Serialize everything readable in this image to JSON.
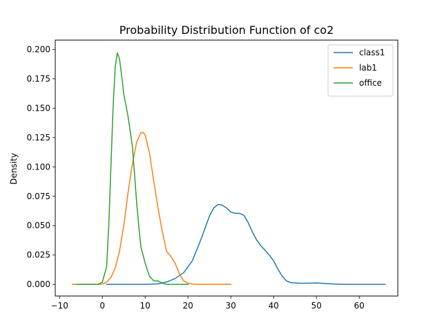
{
  "chart_data": {
    "type": "line",
    "title": "Probability Distribution Function of co2",
    "xlabel": "",
    "ylabel": "Density",
    "xlim": [
      -11,
      69
    ],
    "ylim": [
      -0.0099,
      0.2079
    ],
    "xticks": [
      -10,
      0,
      10,
      20,
      30,
      40,
      50,
      60
    ],
    "xtick_labels": [
      "−10",
      "0",
      "10",
      "20",
      "30",
      "40",
      "50",
      "60"
    ],
    "yticks": [
      0.0,
      0.025,
      0.05,
      0.075,
      0.1,
      0.125,
      0.15,
      0.175,
      0.2
    ],
    "ytick_labels": [
      "0.000",
      "0.025",
      "0.050",
      "0.075",
      "0.100",
      "0.125",
      "0.150",
      "0.175",
      "0.200"
    ],
    "grid": false,
    "legend_position": "top-right",
    "series": [
      {
        "name": "class1",
        "color": "#1f77b4",
        "points": [
          [
            1,
            0.0
          ],
          [
            10,
            0.0
          ],
          [
            13,
            0.0005
          ],
          [
            15,
            0.002
          ],
          [
            17,
            0.005
          ],
          [
            19,
            0.01
          ],
          [
            21,
            0.02
          ],
          [
            23,
            0.038
          ],
          [
            25,
            0.058
          ],
          [
            26,
            0.065
          ],
          [
            27,
            0.068
          ],
          [
            28,
            0.0675
          ],
          [
            29,
            0.065
          ],
          [
            30,
            0.0615
          ],
          [
            31,
            0.0605
          ],
          [
            32,
            0.0605
          ],
          [
            33,
            0.059
          ],
          [
            34,
            0.053
          ],
          [
            35,
            0.045
          ],
          [
            36,
            0.038
          ],
          [
            37,
            0.033
          ],
          [
            38,
            0.029
          ],
          [
            39,
            0.025
          ],
          [
            40,
            0.02
          ],
          [
            41,
            0.013
          ],
          [
            42,
            0.007
          ],
          [
            43,
            0.003
          ],
          [
            44,
            0.0015
          ],
          [
            46,
            0.001
          ],
          [
            48,
            0.001
          ],
          [
            50,
            0.0012
          ],
          [
            52,
            0.0008
          ],
          [
            54,
            0.0003
          ],
          [
            57,
            0.0
          ],
          [
            66,
            0.0
          ]
        ]
      },
      {
        "name": "lab1",
        "color": "#ff7f0e",
        "points": [
          [
            -7,
            0.0
          ],
          [
            -1,
            0.0
          ],
          [
            0,
            0.0003
          ],
          [
            1,
            0.002
          ],
          [
            2,
            0.006
          ],
          [
            3,
            0.014
          ],
          [
            4,
            0.028
          ],
          [
            5,
            0.05
          ],
          [
            6,
            0.078
          ],
          [
            7,
            0.102
          ],
          [
            8,
            0.121
          ],
          [
            9,
            0.129
          ],
          [
            9.5,
            0.1295
          ],
          [
            10,
            0.127
          ],
          [
            11,
            0.112
          ],
          [
            12,
            0.088
          ],
          [
            13,
            0.065
          ],
          [
            14,
            0.045
          ],
          [
            15,
            0.028
          ],
          [
            16,
            0.024
          ],
          [
            17,
            0.018
          ],
          [
            18,
            0.009
          ],
          [
            19,
            0.003
          ],
          [
            20,
            0.001
          ],
          [
            21,
            0.0003
          ],
          [
            22,
            0.0
          ],
          [
            30,
            0.0
          ]
        ]
      },
      {
        "name": "office",
        "color": "#2ca02c",
        "points": [
          [
            -6,
            0.0
          ],
          [
            -1,
            0.0
          ],
          [
            0,
            0.002
          ],
          [
            1,
            0.015
          ],
          [
            1.5,
            0.05
          ],
          [
            2,
            0.1
          ],
          [
            2.5,
            0.15
          ],
          [
            3,
            0.185
          ],
          [
            3.5,
            0.197
          ],
          [
            4,
            0.192
          ],
          [
            4.5,
            0.178
          ],
          [
            5,
            0.162
          ],
          [
            6,
            0.143
          ],
          [
            7,
            0.118
          ],
          [
            7.5,
            0.095
          ],
          [
            8,
            0.07
          ],
          [
            8.5,
            0.05
          ],
          [
            9,
            0.032
          ],
          [
            10,
            0.018
          ],
          [
            11,
            0.007
          ],
          [
            12,
            0.003
          ],
          [
            13,
            0.003
          ],
          [
            14,
            0.001
          ],
          [
            15,
            0.0
          ],
          [
            20,
            0.0
          ]
        ]
      }
    ]
  }
}
